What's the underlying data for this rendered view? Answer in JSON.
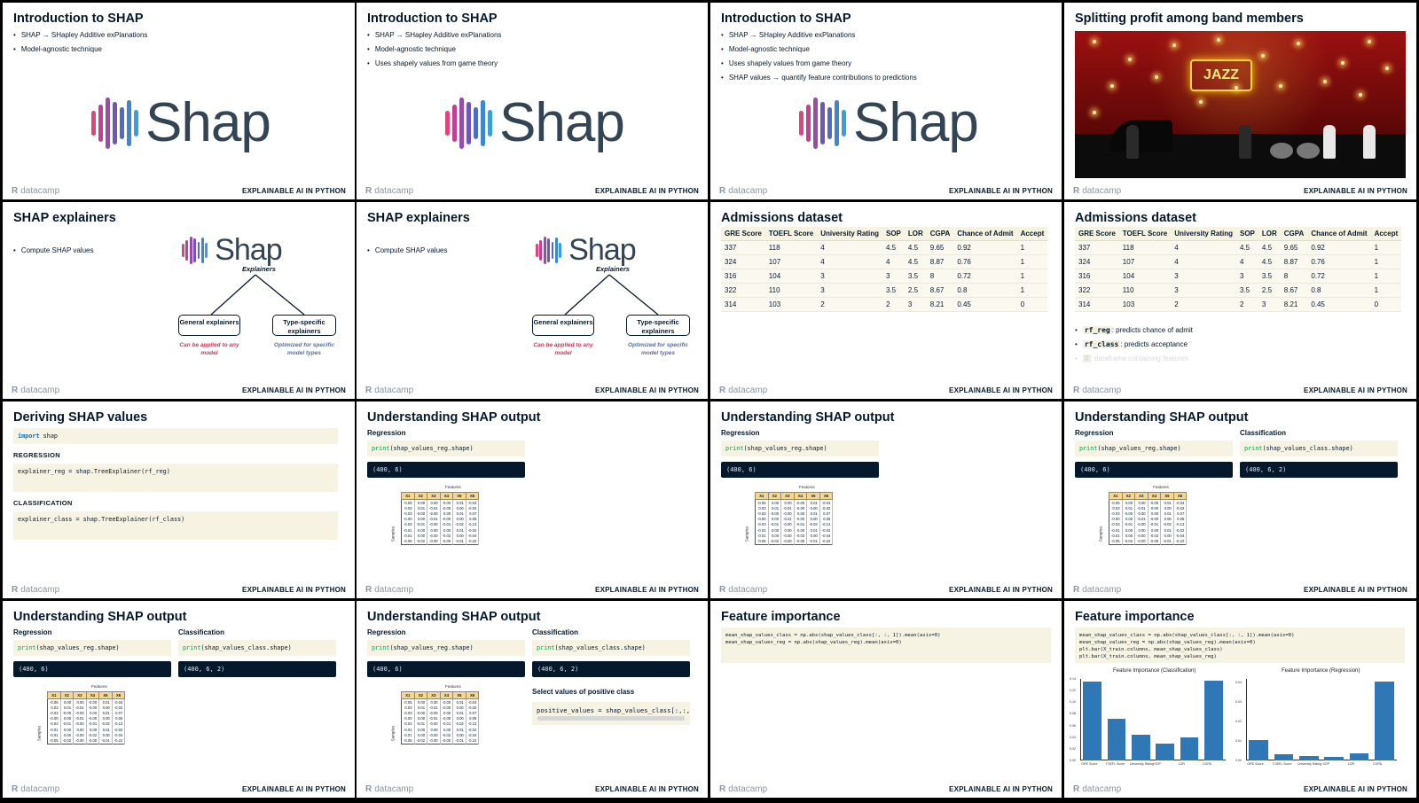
{
  "footer": {
    "logo": "datacamp",
    "logo_mark": "R",
    "brand": "EXPLAINABLE AI IN PYTHON"
  },
  "shap_logo": {
    "word": "Shap",
    "explainers_label": "Explainers"
  },
  "intro_title": "Introduction to SHAP",
  "intro_bullets": [
    "SHAP → SHapley Additive exPlanations",
    "Model-agnostic technique",
    "Uses shapely values from game theory",
    "SHAP values → quantify feature contributions to predictions"
  ],
  "band": {
    "title": "Splitting profit among band members",
    "sign": "JAZZ"
  },
  "explainers": {
    "title": "SHAP explainers",
    "bullet": "Compute SHAP values",
    "general": "General explainers",
    "general_note": "Can be applied to any model",
    "specific": "Type-specific explainers",
    "specific_note": "Optimized for specific model types"
  },
  "admissions": {
    "title": "Admissions dataset",
    "columns": [
      "GRE Score",
      "TOEFL Score",
      "University Rating",
      "SOP",
      "LOR",
      "CGPA",
      "Chance of Admit",
      "Accept"
    ],
    "rows": [
      [
        "337",
        "118",
        "4",
        "4.5",
        "4.5",
        "9.65",
        "0.92",
        "1"
      ],
      [
        "324",
        "107",
        "4",
        "4",
        "4.5",
        "8.87",
        "0.76",
        "1"
      ],
      [
        "316",
        "104",
        "3",
        "3",
        "3.5",
        "8",
        "0.72",
        "1"
      ],
      [
        "322",
        "110",
        "3",
        "3.5",
        "2.5",
        "8.67",
        "0.8",
        "1"
      ],
      [
        "314",
        "103",
        "2",
        "2",
        "3",
        "8.21",
        "0.45",
        "0"
      ]
    ],
    "bullets": [
      {
        "code": "rf_reg",
        "text": ": predicts chance of admit"
      },
      {
        "code": "rf_class",
        "text": ": predicts acceptance"
      },
      {
        "code": "X",
        "text": ": dataframe containing features"
      }
    ]
  },
  "deriving": {
    "title": "Deriving SHAP values",
    "import_kw": "import",
    "import_mod": " shap",
    "reg_label": "REGRESSION",
    "reg_code": "explainer_reg = shap.TreeExplainer(rf_reg)",
    "class_label": "CLASSIFICATION",
    "class_code": "explainer_class = shap.TreeExplainer(rf_class)"
  },
  "output": {
    "title": "Understanding SHAP output",
    "reg_label": "Regression",
    "class_label": "Classification",
    "print_fn": "print",
    "reg_arg": "(shap_values_reg.shape)",
    "class_arg": "(shap_values_class.shape)",
    "reg_out": "(400, 6)",
    "class_out": "(400, 6, 2)",
    "positive_label": "Select values of positive class",
    "positive_code": "positive_values = shap_values_class[:,:,1]"
  },
  "feature_table": {
    "features_label": "Features",
    "samples_label": "Samples",
    "headers": [
      "X1",
      "X2",
      "X3",
      "X4",
      "X5",
      "X6"
    ],
    "rows": [
      [
        "-0.05",
        "0.00",
        "0.00",
        "-0.00",
        "0.01",
        "-0.04"
      ],
      [
        "0.03",
        "0.01",
        "-0.01",
        "-0.00",
        "0.00",
        "-0.02"
      ],
      [
        "-0.03",
        "-0.00",
        "-0.00",
        "0.00",
        "0.01",
        "0.07"
      ],
      [
        "-0.00",
        "0.00",
        "-0.01",
        "-0.00",
        "0.00",
        "0.05"
      ],
      [
        "-0.03",
        "-0.01",
        "-0.00",
        "-0.01",
        "-0.02",
        "-0.13"
      ],
      [
        "-0.01",
        "0.00",
        "0.00",
        "0.00",
        "0.01",
        "-0.02"
      ],
      [
        "-0.01",
        "0.00",
        "-0.00",
        "-0.02",
        "0.00",
        "-0.04"
      ],
      [
        "-0.05",
        "-0.02",
        "-0.00",
        "-0.00",
        "-0.01",
        "-0.22"
      ]
    ]
  },
  "importance": {
    "title": "Feature importance",
    "code_a": [
      "mean_shap_values_class = np.abs(shap_values_class[:, :, 1]).mean(axis=0)",
      "mean_shap_values_reg = np.abs(shap_values_reg).mean(axis=0)"
    ],
    "code_b": [
      "mean_shap_values_class = np.abs(shap_values_class[:, :, 1]).mean(axis=0)",
      "mean_shap_values_reg = np.abs(shap_values_reg).mean(axis=0)",
      "plt.bar(X_train.columns, mean_shap_values_class)",
      "plt.bar(X_train.columns, mean_shap_values_reg)"
    ]
  },
  "chart_data": [
    {
      "type": "bar",
      "title": "Feature Importance (Classification)",
      "categories": [
        "GRE Score",
        "TOEFL Score",
        "University Rating",
        "SOP",
        "LOR",
        "CGPA"
      ],
      "values": [
        0.136,
        0.072,
        0.044,
        0.029,
        0.039,
        0.137
      ],
      "ylim": [
        0,
        0.14
      ],
      "yticks": [
        "0.00",
        "0.02",
        "0.04",
        "0.06",
        "0.08",
        "0.10",
        "0.12",
        "0.14"
      ]
    },
    {
      "type": "bar",
      "title": "Feature Importance (Regression)",
      "categories": [
        "GRE Score",
        "TOEFL Score",
        "University Rating",
        "SOP",
        "LOR",
        "CGPA"
      ],
      "values": [
        0.0106,
        0.0034,
        0.0024,
        0.0016,
        0.0036,
        0.0408
      ],
      "ylim": [
        0,
        0.042
      ],
      "yticks": [
        "0.00",
        "0.01",
        "0.02",
        "0.03",
        "0.04"
      ]
    }
  ]
}
